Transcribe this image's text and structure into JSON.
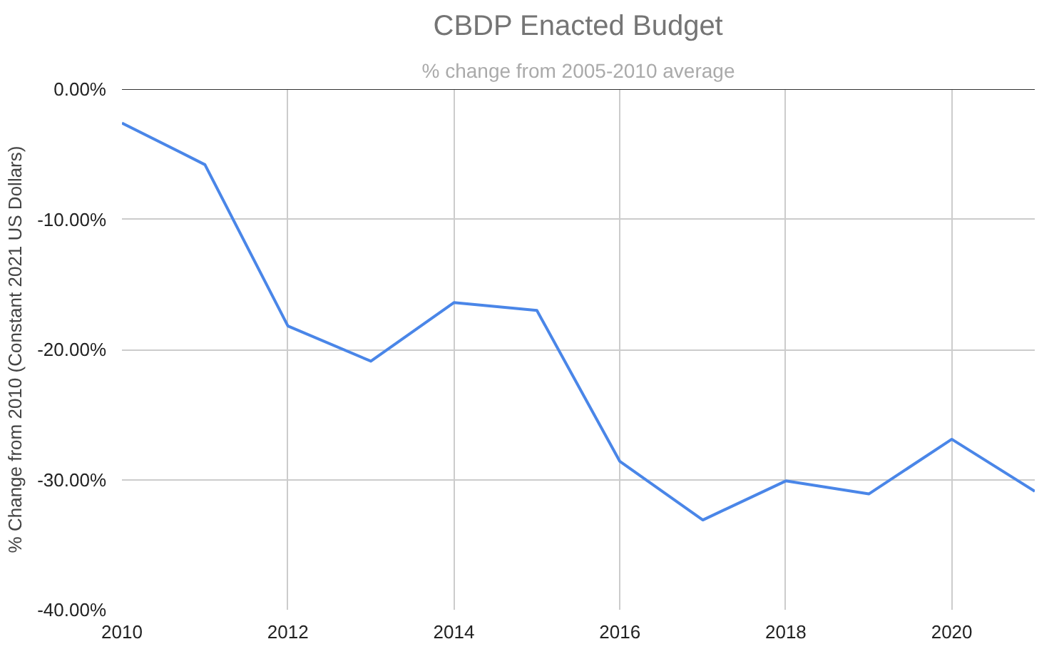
{
  "chart_data": {
    "type": "line",
    "title": "CBDP Enacted Budget",
    "subtitle": "% change from 2005-2010 average",
    "ylabel": "% Change from 2010 (Constant 2021 US Dollars)",
    "x": [
      2010,
      2011,
      2012,
      2013,
      2014,
      2015,
      2016,
      2017,
      2018,
      2019,
      2020,
      2021
    ],
    "series": [
      {
        "color": "#4a86e8",
        "values": [
          -2.6,
          -5.8,
          -18.2,
          -20.9,
          -16.4,
          -17.0,
          -28.6,
          -33.1,
          -30.1,
          -31.1,
          -26.9,
          -30.9
        ]
      }
    ],
    "xlim": [
      2010,
      2021
    ],
    "xticks": [
      2010,
      2012,
      2014,
      2016,
      2018,
      2020
    ],
    "ylim": [
      -40,
      0
    ],
    "yticks": [
      {
        "value": -40,
        "label": "-40.00%"
      },
      {
        "value": -30,
        "label": "-30.00%"
      },
      {
        "value": -20,
        "label": "-20.00%"
      },
      {
        "value": -10,
        "label": "-10.00%"
      },
      {
        "value": 0,
        "label": "0.00%"
      }
    ],
    "grid": true,
    "marker": "none",
    "line_style": "solid"
  }
}
